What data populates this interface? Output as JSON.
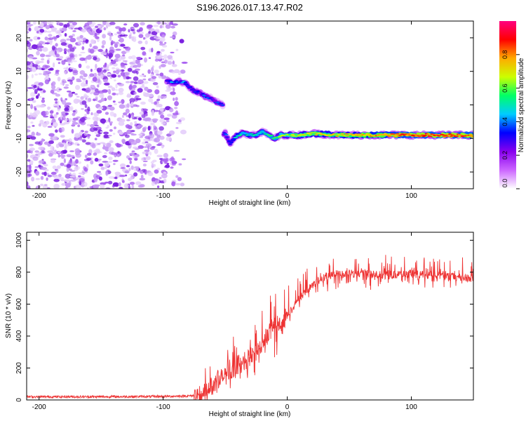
{
  "title": "S196.2026.017.13.47.R02",
  "chart_data": [
    {
      "type": "heatmap",
      "title": "S196.2026.017.13.47.R02",
      "xlabel": "Height of straight line (km)",
      "ylabel": "Frequency (Hz)",
      "xlim": [
        -210,
        150
      ],
      "ylim": [
        -25,
        25
      ],
      "xticks": [
        -200,
        -100,
        0,
        100
      ],
      "yticks": [
        -20,
        -10,
        0,
        10,
        20
      ],
      "noise_region_x": [
        -210,
        -90
      ],
      "trace": {
        "x": [
          -97,
          -92,
          -87,
          -82,
          -78,
          -74,
          -70,
          -66,
          -62,
          -58,
          -55,
          -52,
          -50,
          -48,
          -46,
          -43,
          -40,
          -36,
          -30,
          -24,
          -20,
          -15,
          -10,
          -5,
          0,
          10,
          20,
          40,
          60,
          80,
          100,
          120,
          150
        ],
        "freq": [
          7,
          6.5,
          7,
          6.5,
          5,
          4,
          3.5,
          2.5,
          2,
          1,
          0.5,
          0,
          -8.5,
          -10,
          -11.5,
          -10,
          -9,
          -8.5,
          -9,
          -9,
          -8,
          -9,
          -10,
          -9,
          -9,
          -9,
          -8.5,
          -9,
          -9,
          -9,
          -9,
          -9,
          -9
        ],
        "amp": [
          0.3,
          0.4,
          0.35,
          0.4,
          0.3,
          0.35,
          0.3,
          0.35,
          0.3,
          0.3,
          0.35,
          0.3,
          0.35,
          0.3,
          0.35,
          0.4,
          0.45,
          0.5,
          0.45,
          0.5,
          0.5,
          0.55,
          0.55,
          0.6,
          0.6,
          0.65,
          0.7,
          0.7,
          0.75,
          0.8,
          0.85,
          0.85,
          0.85
        ]
      },
      "colorbar": {
        "label": "Normalized spectral amplitude",
        "ticks": [
          "0.0",
          "0.2",
          "0.4",
          "0.6",
          "0.8"
        ],
        "tick_values": [
          0.0,
          0.2,
          0.4,
          0.6,
          0.8
        ],
        "range": [
          0,
          1
        ],
        "colors": [
          "#ffffff",
          "#cc66ff",
          "#8800ee",
          "#0000ff",
          "#00ccff",
          "#00ff66",
          "#ccff00",
          "#ffaa00",
          "#ff0000",
          "#ff0080"
        ]
      }
    },
    {
      "type": "line",
      "xlabel": "Height of straight line (km)",
      "ylabel": "SNR (10 * v/v)",
      "xlim": [
        -210,
        150
      ],
      "ylim": [
        0,
        1050
      ],
      "xticks": [
        -200,
        -100,
        0,
        100
      ],
      "yticks": [
        0,
        200,
        400,
        600,
        800,
        1000
      ],
      "series_color": "#ee3333",
      "envelope_x": [
        -210,
        -150,
        -100,
        -80,
        -70,
        -60,
        -55,
        -50,
        -45,
        -40,
        -35,
        -30,
        -25,
        -20,
        -15,
        -10,
        -5,
        0,
        5,
        10,
        20,
        30,
        40,
        50,
        60,
        80,
        100,
        120,
        150
      ],
      "envelope_y": [
        20,
        20,
        22,
        25,
        30,
        90,
        130,
        150,
        190,
        220,
        240,
        270,
        300,
        360,
        410,
        460,
        500,
        530,
        580,
        640,
        720,
        770,
        790,
        790,
        790,
        780,
        790,
        780,
        760
      ]
    }
  ]
}
